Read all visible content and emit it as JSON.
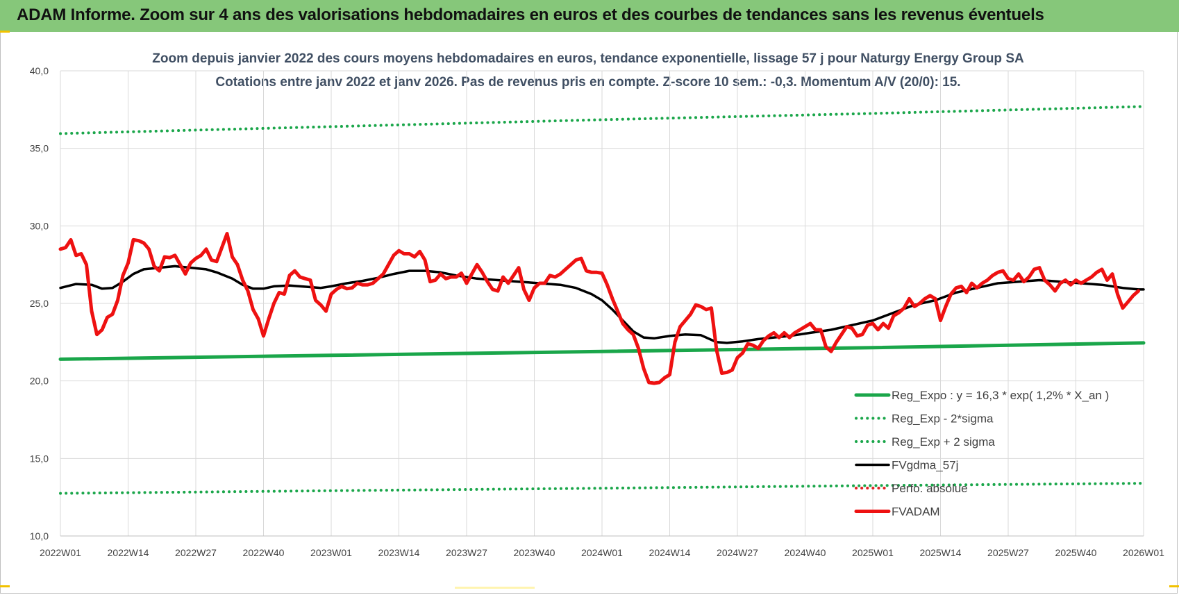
{
  "banner": {
    "title": "ADAM Informe. Zoom sur 4 ans des valorisations hebdomadaires en euros et des courbes de tendances sans les revenus éventuels"
  },
  "chart_data": {
    "type": "line",
    "title_line1": "Zoom depuis janvier 2022 des cours moyens hebdomadaires en euros, tendance exponentielle, lissage 57 j pour Naturgy Energy Group SA",
    "title_line2": "Cotations entre janv 2022 et janv 2026. Pas de revenus pris en compte. Z-score 10 sem.: -0,3. Momentum A/V (20/0): 15.",
    "ylim": [
      10,
      40
    ],
    "y_ticks": [
      "10,0",
      "15,0",
      "20,0",
      "25,0",
      "30,0",
      "35,0",
      "40,0"
    ],
    "x_ticks": [
      "2022W01",
      "2022W14",
      "2022W27",
      "2022W40",
      "2023W01",
      "2023W14",
      "2023W27",
      "2023W40",
      "2024W01",
      "2024W14",
      "2024W27",
      "2024W40",
      "2025W01",
      "2025W14",
      "2025W27",
      "2025W40",
      "2026W01"
    ],
    "grid": true,
    "legend_position": "bottom-right",
    "series": [
      {
        "name": "Reg_Expo : y = 16,3 * exp( 1,2% * X_an )",
        "color": "#1aa64a",
        "style": "solid",
        "points": [
          [
            0,
            21.4
          ],
          [
            52,
            21.65
          ],
          [
            104,
            21.9
          ],
          [
            156,
            22.15
          ],
          [
            208,
            22.45
          ]
        ]
      },
      {
        "name": "Reg_Exp - 2*sigma",
        "color": "#1aa64a",
        "style": "dotted",
        "points": [
          [
            0,
            12.75
          ],
          [
            52,
            12.92
          ],
          [
            104,
            13.08
          ],
          [
            156,
            13.25
          ],
          [
            208,
            13.4
          ]
        ]
      },
      {
        "name": "Reg_Exp + 2 sigma",
        "color": "#1aa64a",
        "style": "dotted",
        "points": [
          [
            0,
            35.95
          ],
          [
            52,
            36.4
          ],
          [
            104,
            36.85
          ],
          [
            156,
            37.25
          ],
          [
            208,
            37.7
          ]
        ]
      },
      {
        "name": "FVgdma_57j",
        "color": "#000000",
        "style": "solid",
        "points": [
          [
            0,
            26.0
          ],
          [
            3,
            26.25
          ],
          [
            6,
            26.2
          ],
          [
            8,
            25.95
          ],
          [
            10,
            26.0
          ],
          [
            12,
            26.4
          ],
          [
            14,
            26.9
          ],
          [
            16,
            27.2
          ],
          [
            19,
            27.3
          ],
          [
            22,
            27.4
          ],
          [
            25,
            27.3
          ],
          [
            28,
            27.2
          ],
          [
            30,
            27.0
          ],
          [
            33,
            26.6
          ],
          [
            35,
            26.2
          ],
          [
            37,
            25.95
          ],
          [
            39,
            25.95
          ],
          [
            41,
            26.1
          ],
          [
            44,
            26.15
          ],
          [
            48,
            26.05
          ],
          [
            50,
            26.0
          ],
          [
            52,
            26.1
          ],
          [
            55,
            26.3
          ],
          [
            58,
            26.45
          ],
          [
            61,
            26.65
          ],
          [
            64,
            26.9
          ],
          [
            67,
            27.1
          ],
          [
            70,
            27.1
          ],
          [
            73,
            27.0
          ],
          [
            76,
            26.8
          ],
          [
            80,
            26.6
          ],
          [
            84,
            26.5
          ],
          [
            88,
            26.4
          ],
          [
            92,
            26.3
          ],
          [
            96,
            26.2
          ],
          [
            99,
            26.0
          ],
          [
            102,
            25.6
          ],
          [
            104,
            25.2
          ],
          [
            106,
            24.6
          ],
          [
            108,
            23.9
          ],
          [
            110,
            23.2
          ],
          [
            112,
            22.8
          ],
          [
            114,
            22.75
          ],
          [
            117,
            22.9
          ],
          [
            120,
            23.0
          ],
          [
            123,
            22.95
          ],
          [
            126,
            22.5
          ],
          [
            128,
            22.45
          ],
          [
            131,
            22.55
          ],
          [
            134,
            22.7
          ],
          [
            137,
            22.8
          ],
          [
            140,
            22.9
          ],
          [
            144,
            23.1
          ],
          [
            148,
            23.3
          ],
          [
            152,
            23.6
          ],
          [
            156,
            23.9
          ],
          [
            160,
            24.4
          ],
          [
            164,
            24.9
          ],
          [
            168,
            25.2
          ],
          [
            172,
            25.7
          ],
          [
            176,
            26.0
          ],
          [
            180,
            26.3
          ],
          [
            184,
            26.4
          ],
          [
            188,
            26.5
          ],
          [
            192,
            26.4
          ],
          [
            196,
            26.3
          ],
          [
            200,
            26.2
          ],
          [
            204,
            26.0
          ],
          [
            207,
            25.9
          ],
          [
            208,
            25.9
          ]
        ]
      },
      {
        "name": "Perfo. absolue",
        "color": "#e02020",
        "style": "dotted",
        "points": []
      },
      {
        "name": "FVADAM",
        "color": "#ee1111",
        "style": "solid",
        "points": [
          [
            0,
            28.5
          ],
          [
            1,
            28.6
          ],
          [
            2,
            29.1
          ],
          [
            3,
            28.1
          ],
          [
            4,
            28.2
          ],
          [
            5,
            27.5
          ],
          [
            6,
            24.5
          ],
          [
            7,
            23.0
          ],
          [
            8,
            23.3
          ],
          [
            9,
            24.1
          ],
          [
            10,
            24.3
          ],
          [
            11,
            25.2
          ],
          [
            12,
            26.8
          ],
          [
            13,
            27.6
          ],
          [
            14,
            29.1
          ],
          [
            15,
            29.05
          ],
          [
            16,
            28.9
          ],
          [
            17,
            28.5
          ],
          [
            18,
            27.4
          ],
          [
            19,
            27.1
          ],
          [
            20,
            28.0
          ],
          [
            21,
            27.95
          ],
          [
            22,
            28.1
          ],
          [
            23,
            27.5
          ],
          [
            24,
            26.9
          ],
          [
            25,
            27.6
          ],
          [
            26,
            27.9
          ],
          [
            27,
            28.1
          ],
          [
            28,
            28.5
          ],
          [
            29,
            27.8
          ],
          [
            30,
            27.7
          ],
          [
            31,
            28.6
          ],
          [
            32,
            29.5
          ],
          [
            33,
            28.0
          ],
          [
            34,
            27.5
          ],
          [
            35,
            26.5
          ],
          [
            36,
            25.8
          ],
          [
            37,
            24.6
          ],
          [
            38,
            24.0
          ],
          [
            39,
            22.9
          ],
          [
            40,
            24.0
          ],
          [
            41,
            25.0
          ],
          [
            42,
            25.7
          ],
          [
            43,
            25.6
          ],
          [
            44,
            26.8
          ],
          [
            45,
            27.1
          ],
          [
            46,
            26.7
          ],
          [
            47,
            26.6
          ],
          [
            48,
            26.5
          ],
          [
            49,
            25.2
          ],
          [
            50,
            24.9
          ],
          [
            51,
            24.5
          ],
          [
            52,
            25.6
          ],
          [
            53,
            25.9
          ],
          [
            54,
            26.1
          ],
          [
            55,
            25.95
          ],
          [
            56,
            26.0
          ],
          [
            57,
            26.3
          ],
          [
            58,
            26.2
          ],
          [
            59,
            26.2
          ],
          [
            60,
            26.3
          ],
          [
            61,
            26.6
          ],
          [
            62,
            26.9
          ],
          [
            63,
            27.5
          ],
          [
            64,
            28.1
          ],
          [
            65,
            28.4
          ],
          [
            66,
            28.2
          ],
          [
            67,
            28.2
          ],
          [
            68,
            28.0
          ],
          [
            69,
            28.35
          ],
          [
            70,
            27.8
          ],
          [
            71,
            26.4
          ],
          [
            72,
            26.5
          ],
          [
            73,
            26.9
          ],
          [
            74,
            26.6
          ],
          [
            75,
            26.7
          ],
          [
            76,
            26.7
          ],
          [
            77,
            26.95
          ],
          [
            78,
            26.3
          ],
          [
            79,
            26.9
          ],
          [
            80,
            27.5
          ],
          [
            81,
            27.0
          ],
          [
            82,
            26.4
          ],
          [
            83,
            25.9
          ],
          [
            84,
            25.8
          ],
          [
            85,
            26.7
          ],
          [
            86,
            26.3
          ],
          [
            87,
            26.8
          ],
          [
            88,
            27.3
          ],
          [
            89,
            25.9
          ],
          [
            90,
            25.2
          ],
          [
            91,
            26.0
          ],
          [
            92,
            26.3
          ],
          [
            93,
            26.3
          ],
          [
            94,
            26.8
          ],
          [
            95,
            26.7
          ],
          [
            96,
            26.9
          ],
          [
            97,
            27.2
          ],
          [
            98,
            27.5
          ],
          [
            99,
            27.8
          ],
          [
            100,
            27.9
          ],
          [
            101,
            27.1
          ],
          [
            102,
            27.0
          ],
          [
            103,
            27.0
          ],
          [
            104,
            26.95
          ],
          [
            105,
            26.2
          ],
          [
            106,
            25.3
          ],
          [
            107,
            24.5
          ],
          [
            108,
            23.7
          ],
          [
            109,
            23.3
          ],
          [
            110,
            23.0
          ],
          [
            111,
            22.1
          ],
          [
            112,
            20.8
          ],
          [
            113,
            19.9
          ],
          [
            114,
            19.85
          ],
          [
            115,
            19.9
          ],
          [
            116,
            20.2
          ],
          [
            117,
            20.4
          ],
          [
            118,
            22.5
          ],
          [
            119,
            23.5
          ],
          [
            120,
            23.9
          ],
          [
            121,
            24.3
          ],
          [
            122,
            24.9
          ],
          [
            123,
            24.8
          ],
          [
            124,
            24.6
          ],
          [
            125,
            24.7
          ],
          [
            126,
            22.0
          ],
          [
            127,
            20.5
          ],
          [
            128,
            20.55
          ],
          [
            129,
            20.7
          ],
          [
            130,
            21.5
          ],
          [
            131,
            21.8
          ],
          [
            132,
            22.4
          ],
          [
            133,
            22.3
          ],
          [
            134,
            22.1
          ],
          [
            135,
            22.6
          ],
          [
            136,
            22.9
          ],
          [
            137,
            23.1
          ],
          [
            138,
            22.8
          ],
          [
            139,
            23.1
          ],
          [
            140,
            22.8
          ],
          [
            141,
            23.1
          ],
          [
            142,
            23.3
          ],
          [
            143,
            23.5
          ],
          [
            144,
            23.7
          ],
          [
            145,
            23.3
          ],
          [
            146,
            23.3
          ],
          [
            147,
            22.2
          ],
          [
            148,
            21.9
          ],
          [
            149,
            22.5
          ],
          [
            150,
            23.0
          ],
          [
            151,
            23.5
          ],
          [
            152,
            23.4
          ],
          [
            153,
            22.9
          ],
          [
            154,
            23.0
          ],
          [
            155,
            23.6
          ],
          [
            156,
            23.7
          ],
          [
            157,
            23.3
          ],
          [
            158,
            23.7
          ],
          [
            159,
            23.4
          ],
          [
            160,
            24.2
          ],
          [
            161,
            24.4
          ],
          [
            162,
            24.7
          ],
          [
            163,
            25.3
          ],
          [
            164,
            24.8
          ],
          [
            165,
            25.0
          ],
          [
            166,
            25.3
          ],
          [
            167,
            25.5
          ],
          [
            168,
            25.3
          ],
          [
            169,
            23.9
          ],
          [
            170,
            24.8
          ],
          [
            171,
            25.6
          ],
          [
            172,
            26.0
          ],
          [
            173,
            26.1
          ],
          [
            174,
            25.7
          ],
          [
            175,
            26.3
          ],
          [
            176,
            26.0
          ],
          [
            177,
            26.3
          ],
          [
            178,
            26.5
          ],
          [
            179,
            26.8
          ],
          [
            180,
            27.0
          ],
          [
            181,
            27.1
          ],
          [
            182,
            26.6
          ],
          [
            183,
            26.5
          ],
          [
            184,
            26.9
          ],
          [
            185,
            26.4
          ],
          [
            186,
            26.7
          ],
          [
            187,
            27.2
          ],
          [
            188,
            27.3
          ],
          [
            189,
            26.5
          ],
          [
            190,
            26.2
          ],
          [
            191,
            25.8
          ],
          [
            192,
            26.3
          ],
          [
            193,
            26.5
          ],
          [
            194,
            26.2
          ],
          [
            195,
            26.5
          ],
          [
            196,
            26.3
          ],
          [
            197,
            26.5
          ],
          [
            198,
            26.7
          ],
          [
            199,
            27.0
          ],
          [
            200,
            27.2
          ],
          [
            201,
            26.5
          ],
          [
            202,
            26.9
          ],
          [
            203,
            25.6
          ],
          [
            204,
            24.7
          ],
          [
            205,
            25.1
          ],
          [
            206,
            25.5
          ],
          [
            207,
            25.8
          ]
        ]
      }
    ]
  }
}
